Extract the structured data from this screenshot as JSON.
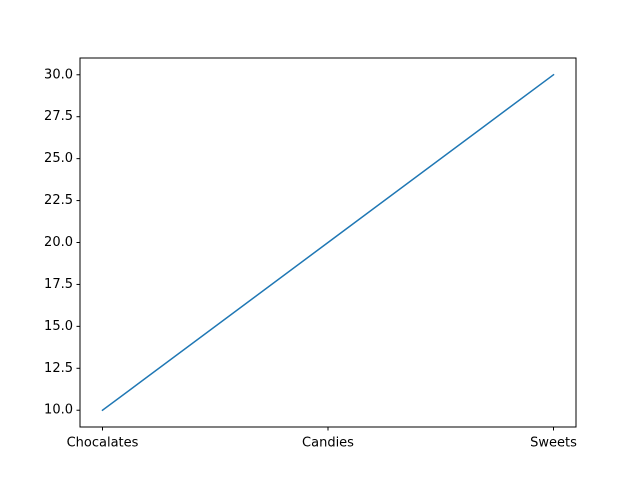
{
  "chart_data": {
    "type": "line",
    "categories": [
      "Chocalates",
      "Candies",
      "Sweets"
    ],
    "values": [
      10,
      20,
      30
    ],
    "title": "",
    "xlabel": "",
    "ylabel": "",
    "ylim": [
      9,
      31
    ],
    "yticks": [
      10.0,
      12.5,
      15.0,
      17.5,
      20.0,
      22.5,
      25.0,
      27.5,
      30.0
    ],
    "ytick_labels": [
      "10.0",
      "12.5",
      "15.0",
      "17.5",
      "20.0",
      "22.5",
      "25.0",
      "27.5",
      "30.0"
    ],
    "grid": false,
    "line_color": "#1f77b4"
  }
}
